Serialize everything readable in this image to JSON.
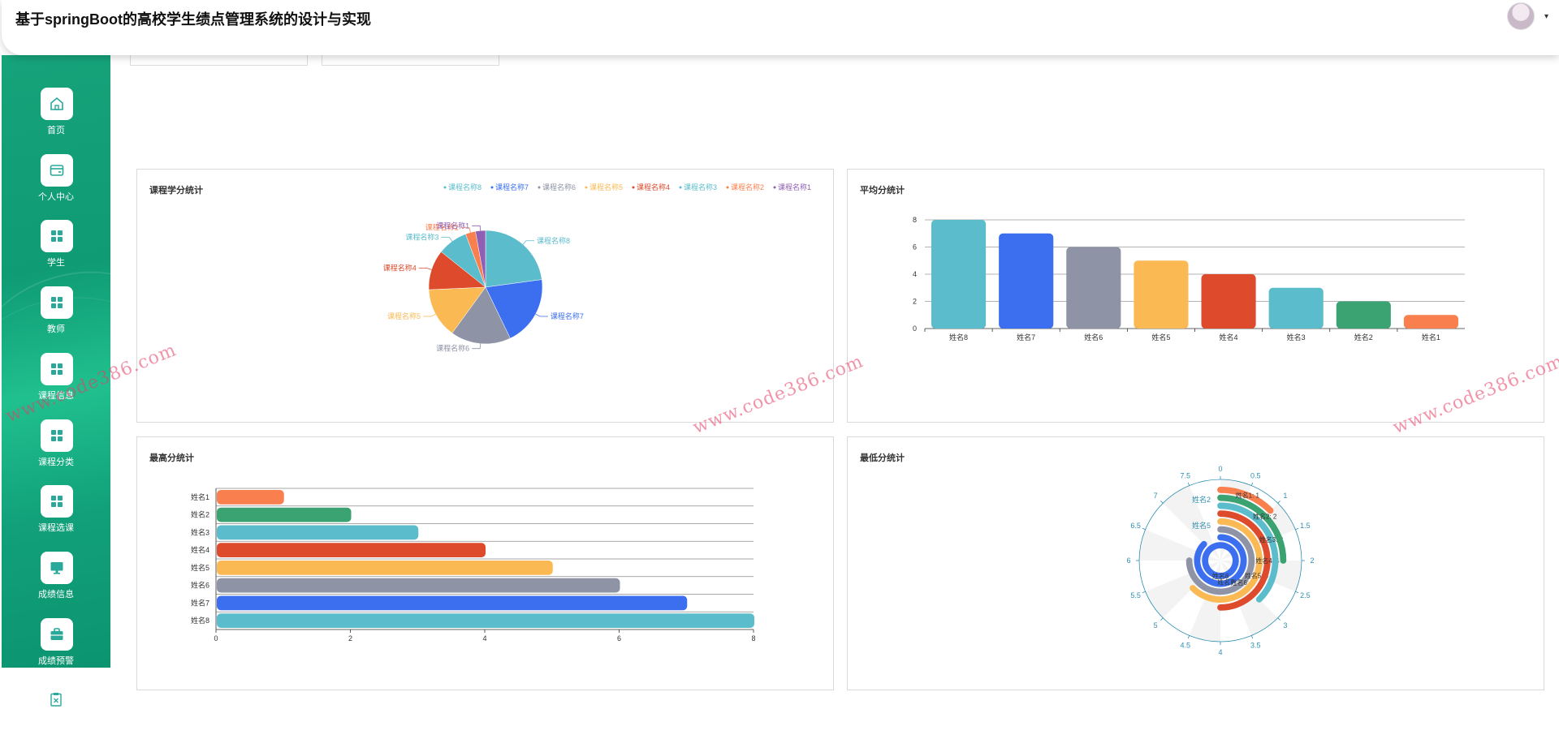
{
  "header": {
    "title": "基于springBoot的高校学生绩点管理系统的设计与实现",
    "avatar_icon": "user-avatar",
    "caret_icon": "chevron-down-icon"
  },
  "sidebar": {
    "items": [
      {
        "label": "首页",
        "icon": "home-icon"
      },
      {
        "label": "个人中心",
        "icon": "wallet-icon"
      },
      {
        "label": "学生",
        "icon": "grid-icon"
      },
      {
        "label": "教师",
        "icon": "grid-icon"
      },
      {
        "label": "课程信息",
        "icon": "grid-icon"
      },
      {
        "label": "课程分类",
        "icon": "grid-icon"
      },
      {
        "label": "课程选课",
        "icon": "grid-icon"
      },
      {
        "label": "成绩信息",
        "icon": "monitor-icon"
      },
      {
        "label": "成绩预警",
        "icon": "briefcase-icon"
      }
    ],
    "bottom_icon": "clipboard-icon"
  },
  "watermark": "www.code386.com",
  "colors": {
    "sidebar_green": "#16a37a",
    "accent_teal": "#2aa89a"
  },
  "panels": {
    "credit": {
      "title": "课程学分统计"
    },
    "average": {
      "title": "平均分统计"
    },
    "max": {
      "title": "最高分统计"
    },
    "min": {
      "title": "最低分统计"
    }
  },
  "chart_data": [
    {
      "id": "credit",
      "type": "pie",
      "title": "课程学分统计",
      "legend_position": "top-right",
      "legend": [
        "课程名称8",
        "课程名称7",
        "课程名称6",
        "课程名称5",
        "课程名称4",
        "课程名称3",
        "课程名称2",
        "课程名称1"
      ],
      "slices": [
        {
          "name": "课程名称8",
          "value": 8,
          "color": "#5bbccc"
        },
        {
          "name": "课程名称7",
          "value": 7,
          "color": "#3b6ff0"
        },
        {
          "name": "课程名称6",
          "value": 6,
          "color": "#8e93a6"
        },
        {
          "name": "课程名称5",
          "value": 5,
          "color": "#fbb954"
        },
        {
          "name": "课程名称4",
          "value": 4,
          "color": "#dd4a2c"
        },
        {
          "name": "课程名称3",
          "value": 3,
          "color": "#5bbccc"
        },
        {
          "name": "课程名称2",
          "value": 1,
          "color": "#fa7f4f"
        },
        {
          "name": "课程名称1",
          "value": 1,
          "color": "#8e5fb3"
        }
      ]
    },
    {
      "id": "average",
      "type": "bar",
      "title": "平均分统计",
      "categories": [
        "姓名8",
        "姓名7",
        "姓名6",
        "姓名5",
        "姓名4",
        "姓名3",
        "姓名2",
        "姓名1"
      ],
      "values": [
        8,
        7,
        6,
        5,
        4,
        3,
        2,
        1
      ],
      "colors": [
        "#5bbccc",
        "#3b6ff0",
        "#8e93a6",
        "#fbb954",
        "#dd4a2c",
        "#5bbccc",
        "#3ba272",
        "#fa7f4f"
      ],
      "yticks": [
        "0",
        "2",
        "4",
        "6",
        "8"
      ],
      "ylim": [
        0,
        8
      ],
      "grid": true
    },
    {
      "id": "max",
      "type": "bar",
      "orientation": "horizontal",
      "title": "最高分统计",
      "categories": [
        "姓名1",
        "姓名2",
        "姓名3",
        "姓名4",
        "姓名5",
        "姓名6",
        "姓名7",
        "姓名8"
      ],
      "values": [
        1,
        2,
        3,
        4,
        5,
        6,
        7,
        8
      ],
      "colors": [
        "#fa7f4f",
        "#3ba272",
        "#5bbccc",
        "#dd4a2c",
        "#fbb954",
        "#8e93a6",
        "#3b6ff0",
        "#5bbccc"
      ],
      "xticks": [
        "0",
        "2",
        "4",
        "6",
        "8"
      ],
      "xlim": [
        0,
        8
      ],
      "grid": true
    },
    {
      "id": "min",
      "type": "polar-bar",
      "title": "最低分统计",
      "angle_max": 8,
      "angle_ticks": [
        "0",
        "0.5",
        "1",
        "1.5",
        "2",
        "2.5",
        "3",
        "3.5",
        "4",
        "4.5",
        "5",
        "5.5",
        "6",
        "6.5",
        "7",
        "7.5"
      ],
      "categories": [
        "姓名8",
        "姓名7",
        "姓名6",
        "姓名5",
        "姓名4",
        "姓名3",
        "姓名2",
        "姓名1"
      ],
      "values": [
        8,
        7,
        6,
        5,
        4,
        3,
        2,
        1
      ],
      "colors": [
        "#3b6ff0",
        "#3b6ff0",
        "#8e93a6",
        "#fbb954",
        "#dd4a2c",
        "#5bbccc",
        "#3ba272",
        "#fa7f4f"
      ],
      "labels": [
        "姓名8",
        "姓名7: 7",
        "姓名6: 6",
        "姓名5: 5",
        "姓名4: 4",
        "姓名3: 3",
        "姓名2: 2",
        "姓名1: 1"
      ],
      "side_labels": [
        "姓名2",
        "姓名5"
      ]
    }
  ]
}
